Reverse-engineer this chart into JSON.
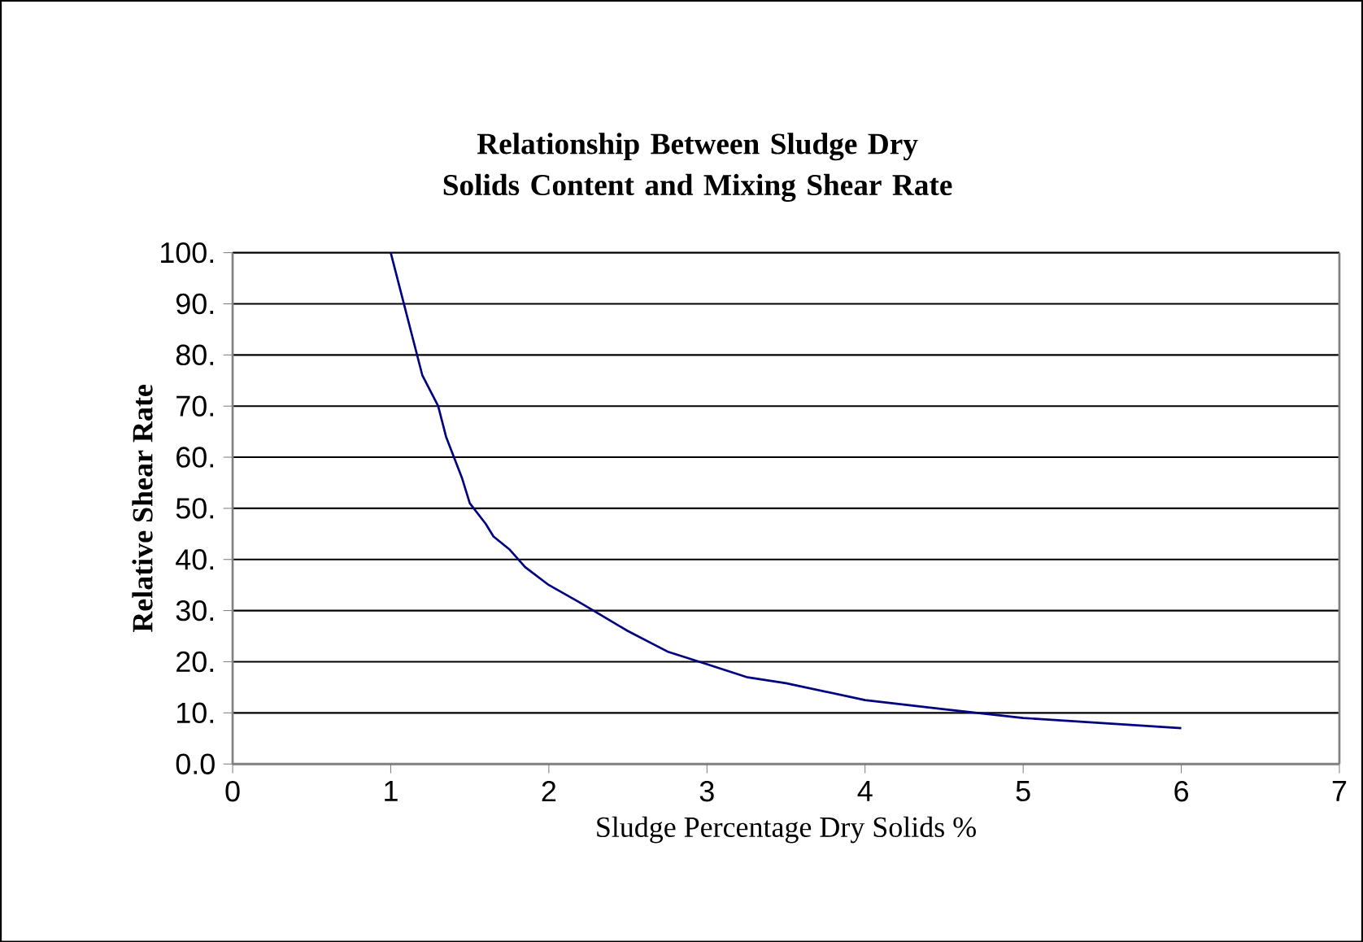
{
  "chart_data": {
    "type": "line",
    "title": "Relationship Between Sludge Dry Solids Content and Mixing Shear Rate",
    "xlabel": "Sludge Percentage Dry Solids %",
    "ylabel": "Relative Shear Rate",
    "xlim": [
      0,
      7
    ],
    "xticks": [
      0,
      1,
      2,
      3,
      4,
      5,
      6,
      7
    ],
    "ylim": [
      0,
      100
    ],
    "yticks": [
      {
        "value": 0,
        "label": "0.0"
      },
      {
        "value": 10,
        "label": "10."
      },
      {
        "value": 20,
        "label": "20."
      },
      {
        "value": 30,
        "label": "30."
      },
      {
        "value": 40,
        "label": "40."
      },
      {
        "value": 50,
        "label": "50."
      },
      {
        "value": 60,
        "label": "60."
      },
      {
        "value": 70,
        "label": "70."
      },
      {
        "value": 80,
        "label": "80."
      },
      {
        "value": 90,
        "label": "90."
      },
      {
        "value": 100,
        "label": "100."
      }
    ],
    "grid": "y",
    "marker": "none",
    "line_style": "solid",
    "series": [
      {
        "color": "#000080",
        "x": [
          1.0,
          1.1,
          1.2,
          1.3,
          1.35,
          1.45,
          1.5,
          1.6,
          1.65,
          1.75,
          1.85,
          2.0,
          2.2,
          2.5,
          2.75,
          3.0,
          3.25,
          3.5,
          4.0,
          4.5,
          5.0,
          5.5,
          6.0
        ],
        "values": [
          100,
          88,
          76,
          70,
          64,
          56,
          51,
          47,
          44.5,
          42,
          38.5,
          35,
          31.5,
          26,
          22,
          19.5,
          17,
          15.8,
          12.5,
          10.7,
          9,
          8,
          7
        ]
      }
    ]
  }
}
